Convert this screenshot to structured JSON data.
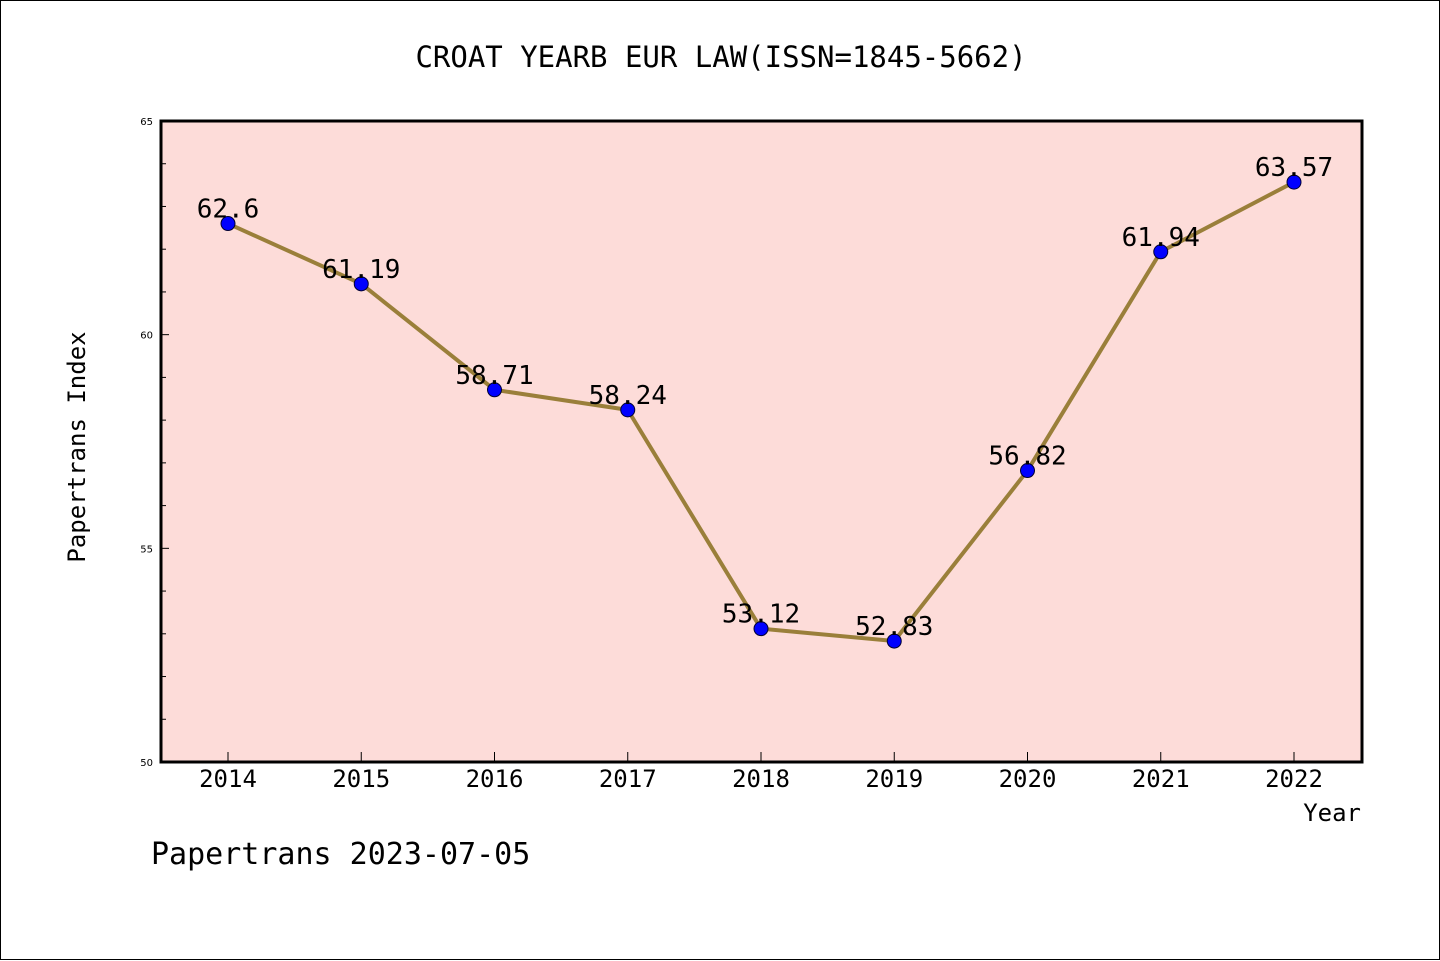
{
  "chart_data": {
    "type": "line",
    "title": "CROAT YEARB EUR LAW(ISSN=1845-5662)",
    "xlabel": "Year",
    "ylabel": "Papertrans Index",
    "categories": [
      "2014",
      "2015",
      "2016",
      "2017",
      "2018",
      "2019",
      "2020",
      "2021",
      "2022"
    ],
    "values": [
      62.6,
      61.19,
      58.71,
      58.24,
      53.12,
      52.83,
      56.82,
      61.94,
      63.57
    ],
    "data_labels": [
      "62.6",
      "61.19",
      "58.71",
      "58.24",
      "53.12",
      "52.83",
      "56.82",
      "61.94",
      "63.57"
    ],
    "ylim": [
      50,
      65
    ],
    "y_ticks": [
      "50",
      "55",
      "60",
      "65"
    ],
    "grid": false,
    "legend": "none",
    "colors": {
      "plot_background": "#fddcd9",
      "line": "#9a7f3a",
      "marker": "#0000ff"
    }
  },
  "footer": {
    "watermark": "Papertrans 2023-07-05"
  }
}
